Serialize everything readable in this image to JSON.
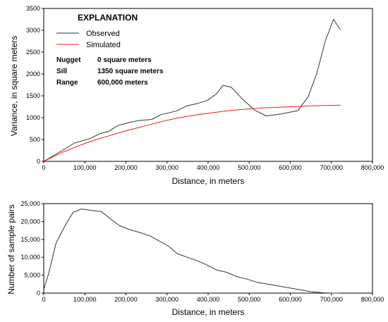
{
  "chart_data": [
    {
      "type": "line",
      "title": "",
      "xlabel": "Distance, in meters",
      "ylabel": "Variance, in square meters",
      "xlim": [
        0,
        800000
      ],
      "ylim": [
        0,
        3500
      ],
      "xticks": [
        "0",
        "100,000",
        "200,000",
        "300,000",
        "400,000",
        "500,000",
        "600,000",
        "700,000",
        "800,000"
      ],
      "yticks": [
        "0",
        "500",
        "1000",
        "1500",
        "2000",
        "2500",
        "3000",
        "3500"
      ],
      "legend": {
        "title": "EXPLANATION",
        "placement": "top-left",
        "parameters": [
          {
            "label": "Nugget",
            "value": "0 square meters"
          },
          {
            "label": "Sill",
            "value": "1350 square meters"
          },
          {
            "label": "Range",
            "value": "600,000 meters"
          }
        ]
      },
      "series": [
        {
          "name": "Observed",
          "color": "#333333",
          "points": [
            [
              0,
              0
            ],
            [
              38000,
              210
            ],
            [
              75000,
              420
            ],
            [
              112000,
              520
            ],
            [
              138000,
              640
            ],
            [
              157000,
              680
            ],
            [
              180000,
              820
            ],
            [
              205000,
              880
            ],
            [
              228000,
              930
            ],
            [
              263000,
              960
            ],
            [
              285000,
              1070
            ],
            [
              322000,
              1150
            ],
            [
              348000,
              1270
            ],
            [
              372000,
              1320
            ],
            [
              397000,
              1390
            ],
            [
              420000,
              1540
            ],
            [
              436000,
              1740
            ],
            [
              456000,
              1700
            ],
            [
              482000,
              1440
            ],
            [
              512000,
              1180
            ],
            [
              541000,
              1040
            ],
            [
              575000,
              1080
            ],
            [
              618000,
              1160
            ],
            [
              643000,
              1470
            ],
            [
              664000,
              2000
            ],
            [
              685000,
              2750
            ],
            [
              705000,
              3250
            ],
            [
              722000,
              3010
            ]
          ]
        },
        {
          "name": "Simulated",
          "color": "#ee1c1c",
          "points": [
            [
              0,
              0
            ],
            [
              25000,
              116
            ],
            [
              50000,
              224
            ],
            [
              75000,
              320
            ],
            [
              100000,
              410
            ],
            [
              125000,
              490
            ],
            [
              150000,
              560
            ],
            [
              175000,
              630
            ],
            [
              200000,
              700
            ],
            [
              225000,
              760
            ],
            [
              250000,
              820
            ],
            [
              275000,
              880
            ],
            [
              300000,
              940
            ],
            [
              325000,
              990
            ],
            [
              350000,
              1030
            ],
            [
              375000,
              1070
            ],
            [
              400000,
              1100
            ],
            [
              425000,
              1130
            ],
            [
              450000,
              1160
            ],
            [
              475000,
              1180
            ],
            [
              500000,
              1200
            ],
            [
              525000,
              1220
            ],
            [
              550000,
              1230
            ],
            [
              575000,
              1240
            ],
            [
              600000,
              1250
            ],
            [
              625000,
              1260
            ],
            [
              650000,
              1270
            ],
            [
              675000,
              1275
            ],
            [
              700000,
              1280
            ],
            [
              722000,
              1285
            ]
          ]
        }
      ]
    },
    {
      "type": "line",
      "title": "",
      "xlabel": "Distance, in meters",
      "ylabel": "Number of sample pairs",
      "xlim": [
        0,
        800000
      ],
      "ylim": [
        0,
        25000
      ],
      "xticks": [
        "0",
        "100,000",
        "200,000",
        "300,000",
        "400,000",
        "500,000",
        "600,000",
        "700,000",
        "800,000"
      ],
      "yticks": [
        "0",
        "5,000",
        "10,000",
        "15,000",
        "20,000",
        "25,000"
      ],
      "series": [
        {
          "color": "#333333",
          "points": [
            [
              0,
              1000
            ],
            [
              12000,
              5500
            ],
            [
              30000,
              14000
            ],
            [
              55000,
              19500
            ],
            [
              72000,
              22600
            ],
            [
              92000,
              23500
            ],
            [
              117000,
              23100
            ],
            [
              140000,
              22800
            ],
            [
              165000,
              20500
            ],
            [
              185000,
              18800
            ],
            [
              210000,
              17700
            ],
            [
              235000,
              16900
            ],
            [
              260000,
              15900
            ],
            [
              285000,
              14300
            ],
            [
              305000,
              13000
            ],
            [
              325000,
              11000
            ],
            [
              345000,
              10200
            ],
            [
              370000,
              9200
            ],
            [
              395000,
              8000
            ],
            [
              420000,
              6500
            ],
            [
              445000,
              5800
            ],
            [
              470000,
              4600
            ],
            [
              495000,
              3900
            ],
            [
              520000,
              3000
            ],
            [
              550000,
              2400
            ],
            [
              575000,
              1900
            ],
            [
              600000,
              1400
            ],
            [
              625000,
              900
            ],
            [
              650000,
              400
            ],
            [
              680000,
              100
            ],
            [
              700000,
              0
            ],
            [
              720000,
              0
            ]
          ]
        }
      ]
    }
  ]
}
